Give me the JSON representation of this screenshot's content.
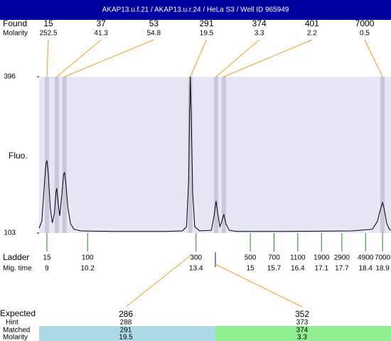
{
  "title": "AKAP13.u.f.21 / AKAP13.u.r.24 / HeLa S3 / Well ID 965949",
  "found_label": "Found",
  "molarity_label": "Molarity",
  "chart_data": {
    "type": "electropherogram",
    "y_label": "Fluo.",
    "color": "#000000",
    "ylim": [
      103,
      396
    ],
    "yticks": [
      103,
      396
    ],
    "xlim": [
      8.77,
      19.15
    ],
    "x": [
      8.77,
      8.85,
      8.92,
      8.97,
      9.0,
      9.04,
      9.1,
      9.16,
      9.22,
      9.27,
      9.29,
      9.33,
      9.38,
      9.44,
      9.49,
      9.52,
      9.56,
      9.62,
      9.7,
      9.8,
      10.0,
      11.0,
      12.5,
      13.0,
      13.12,
      13.18,
      13.21,
      13.23,
      13.26,
      13.3,
      13.36,
      13.5,
      13.85,
      13.93,
      13.99,
      14.04,
      14.1,
      14.16,
      14.22,
      14.28,
      14.38,
      14.6,
      16.0,
      18.0,
      18.6,
      18.75,
      18.85,
      18.9,
      18.95,
      19.02,
      19.1,
      19.15
    ],
    "values": [
      112,
      125,
      190,
      232,
      239,
      215,
      150,
      122,
      140,
      180,
      187,
      160,
      135,
      175,
      212,
      217,
      195,
      150,
      120,
      110,
      107,
      106,
      106,
      107,
      115,
      200,
      330,
      396,
      320,
      180,
      115,
      107,
      108,
      135,
      163,
      140,
      115,
      125,
      138,
      120,
      108,
      106,
      106,
      107,
      110,
      125,
      150,
      160,
      148,
      122,
      110,
      108
    ],
    "peaks": {
      "x": [
        9.0,
        9.29,
        9.52,
        13.23,
        13.99,
        14.22,
        18.9
      ],
      "found": [
        15,
        37,
        53,
        291,
        374,
        401,
        7000
      ],
      "molarity": [
        252.5,
        41.3,
        54.8,
        19.5,
        3.3,
        2.2,
        0.5
      ]
    },
    "ladder": {
      "label": "Ladder",
      "time_label": "Mig. time",
      "sizes": [
        15,
        100,
        300,
        500,
        700,
        1100,
        1900,
        2900,
        4900,
        7000
      ],
      "times": [
        9,
        10.2,
        13.4,
        15,
        15.7,
        16.4,
        17.1,
        17.7,
        18.4,
        18.9
      ]
    }
  },
  "expected": {
    "label": "Expected",
    "hint_label": "Hint",
    "matched_label": "Matched",
    "molarity_label": "Molarity",
    "columns": [
      {
        "expected": 286,
        "hint": 288,
        "matched": 291,
        "molarity": 19.5
      },
      {
        "expected": 352,
        "hint": 373,
        "matched": 374,
        "molarity": 3.3
      }
    ]
  }
}
